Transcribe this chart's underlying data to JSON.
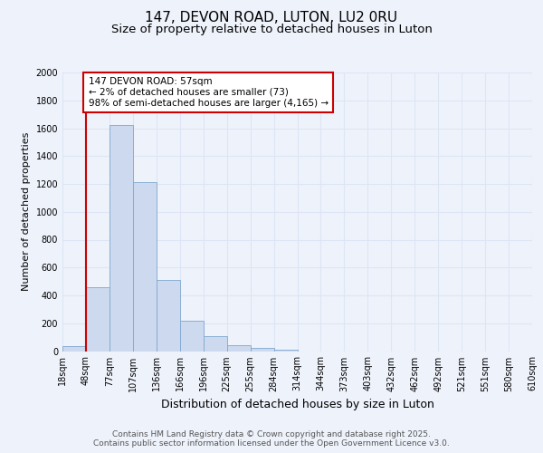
{
  "title": "147, DEVON ROAD, LUTON, LU2 0RU",
  "subtitle": "Size of property relative to detached houses in Luton",
  "xlabel": "Distribution of detached houses by size in Luton",
  "ylabel": "Number of detached properties",
  "bar_values": [
    35,
    460,
    1620,
    1210,
    510,
    220,
    110,
    45,
    20,
    10,
    0,
    0,
    0,
    0,
    0,
    0,
    0,
    0,
    0,
    0
  ],
  "bin_labels": [
    "18sqm",
    "48sqm",
    "77sqm",
    "107sqm",
    "136sqm",
    "166sqm",
    "196sqm",
    "225sqm",
    "255sqm",
    "284sqm",
    "314sqm",
    "344sqm",
    "373sqm",
    "403sqm",
    "432sqm",
    "462sqm",
    "492sqm",
    "521sqm",
    "551sqm",
    "580sqm",
    "610sqm"
  ],
  "bar_color": "#ccd9ee",
  "bar_edge_color": "#7fa8cf",
  "annotation_box_text": "147 DEVON ROAD: 57sqm\n← 2% of detached houses are smaller (73)\n98% of semi-detached houses are larger (4,165) →",
  "vline_color": "#cc0000",
  "vline_x_data": 1.0,
  "ylim": [
    0,
    2000
  ],
  "yticks": [
    0,
    200,
    400,
    600,
    800,
    1000,
    1200,
    1400,
    1600,
    1800,
    2000
  ],
  "background_color": "#eef2fb",
  "grid_color": "#dde5f5",
  "footer_text": "Contains HM Land Registry data © Crown copyright and database right 2025.\nContains public sector information licensed under the Open Government Licence v3.0.",
  "title_fontsize": 11,
  "subtitle_fontsize": 9.5,
  "xlabel_fontsize": 9,
  "ylabel_fontsize": 8,
  "annotation_fontsize": 7.5,
  "footer_fontsize": 6.5,
  "tick_fontsize": 7
}
